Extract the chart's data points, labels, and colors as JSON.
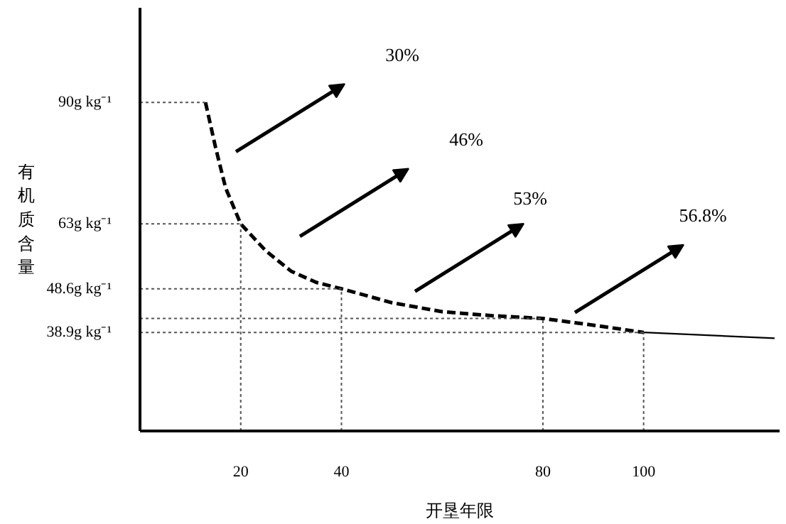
{
  "chart_data": {
    "type": "line",
    "xlabel": "开垦年限",
    "ylabel": "有机质含量",
    "xlim": [
      0,
      127
    ],
    "ylim": [
      17,
      111
    ],
    "xticks": [
      20,
      40,
      80,
      100
    ],
    "yticks": [
      {
        "value": 90,
        "label": "90g kg⁻¹"
      },
      {
        "value": 63,
        "label": "63g kg⁻¹"
      },
      {
        "value": 48.6,
        "label": "48.6g kg⁻¹"
      },
      {
        "value": 38.9,
        "label": "38.9g kg⁻¹"
      }
    ],
    "series": [
      {
        "color": "#000000",
        "line_style": "dashed",
        "x": [
          13,
          15,
          17,
          20,
          25,
          30,
          35,
          40,
          50,
          60,
          70,
          80,
          90,
          100
        ],
        "values": [
          90,
          80,
          71,
          63,
          57,
          52.5,
          50,
          48.6,
          45.5,
          43.5,
          42.6,
          42,
          40.5,
          38.9
        ]
      },
      {
        "color": "#000000",
        "line_style": "solid",
        "x": [
          100,
          126
        ],
        "values": [
          38.9,
          37.6
        ]
      }
    ],
    "ref_lines": [
      {
        "axis": "y",
        "value": 90,
        "color": "#555555",
        "line_style": "dotted"
      },
      {
        "axis": "y",
        "value": 63,
        "color": "#555555",
        "line_style": "dotted"
      },
      {
        "axis": "y",
        "value": 48.6,
        "color": "#555555",
        "line_style": "dotted"
      },
      {
        "axis": "y",
        "value": 42,
        "color": "#555555",
        "line_style": "dotted"
      },
      {
        "axis": "y",
        "value": 38.9,
        "color": "#555555",
        "line_style": "dotted"
      },
      {
        "axis": "x",
        "value": 20,
        "color": "#555555",
        "line_style": "dotted"
      },
      {
        "axis": "x",
        "value": 40,
        "color": "#555555",
        "line_style": "dotted"
      },
      {
        "axis": "x",
        "value": 80,
        "color": "#555555",
        "line_style": "dotted"
      },
      {
        "axis": "x",
        "value": 100,
        "color": "#555555",
        "line_style": "dotted"
      }
    ],
    "annotations": [
      "30%",
      "46%",
      "53%",
      "56.8%"
    ],
    "grid": false,
    "marker": "none"
  }
}
